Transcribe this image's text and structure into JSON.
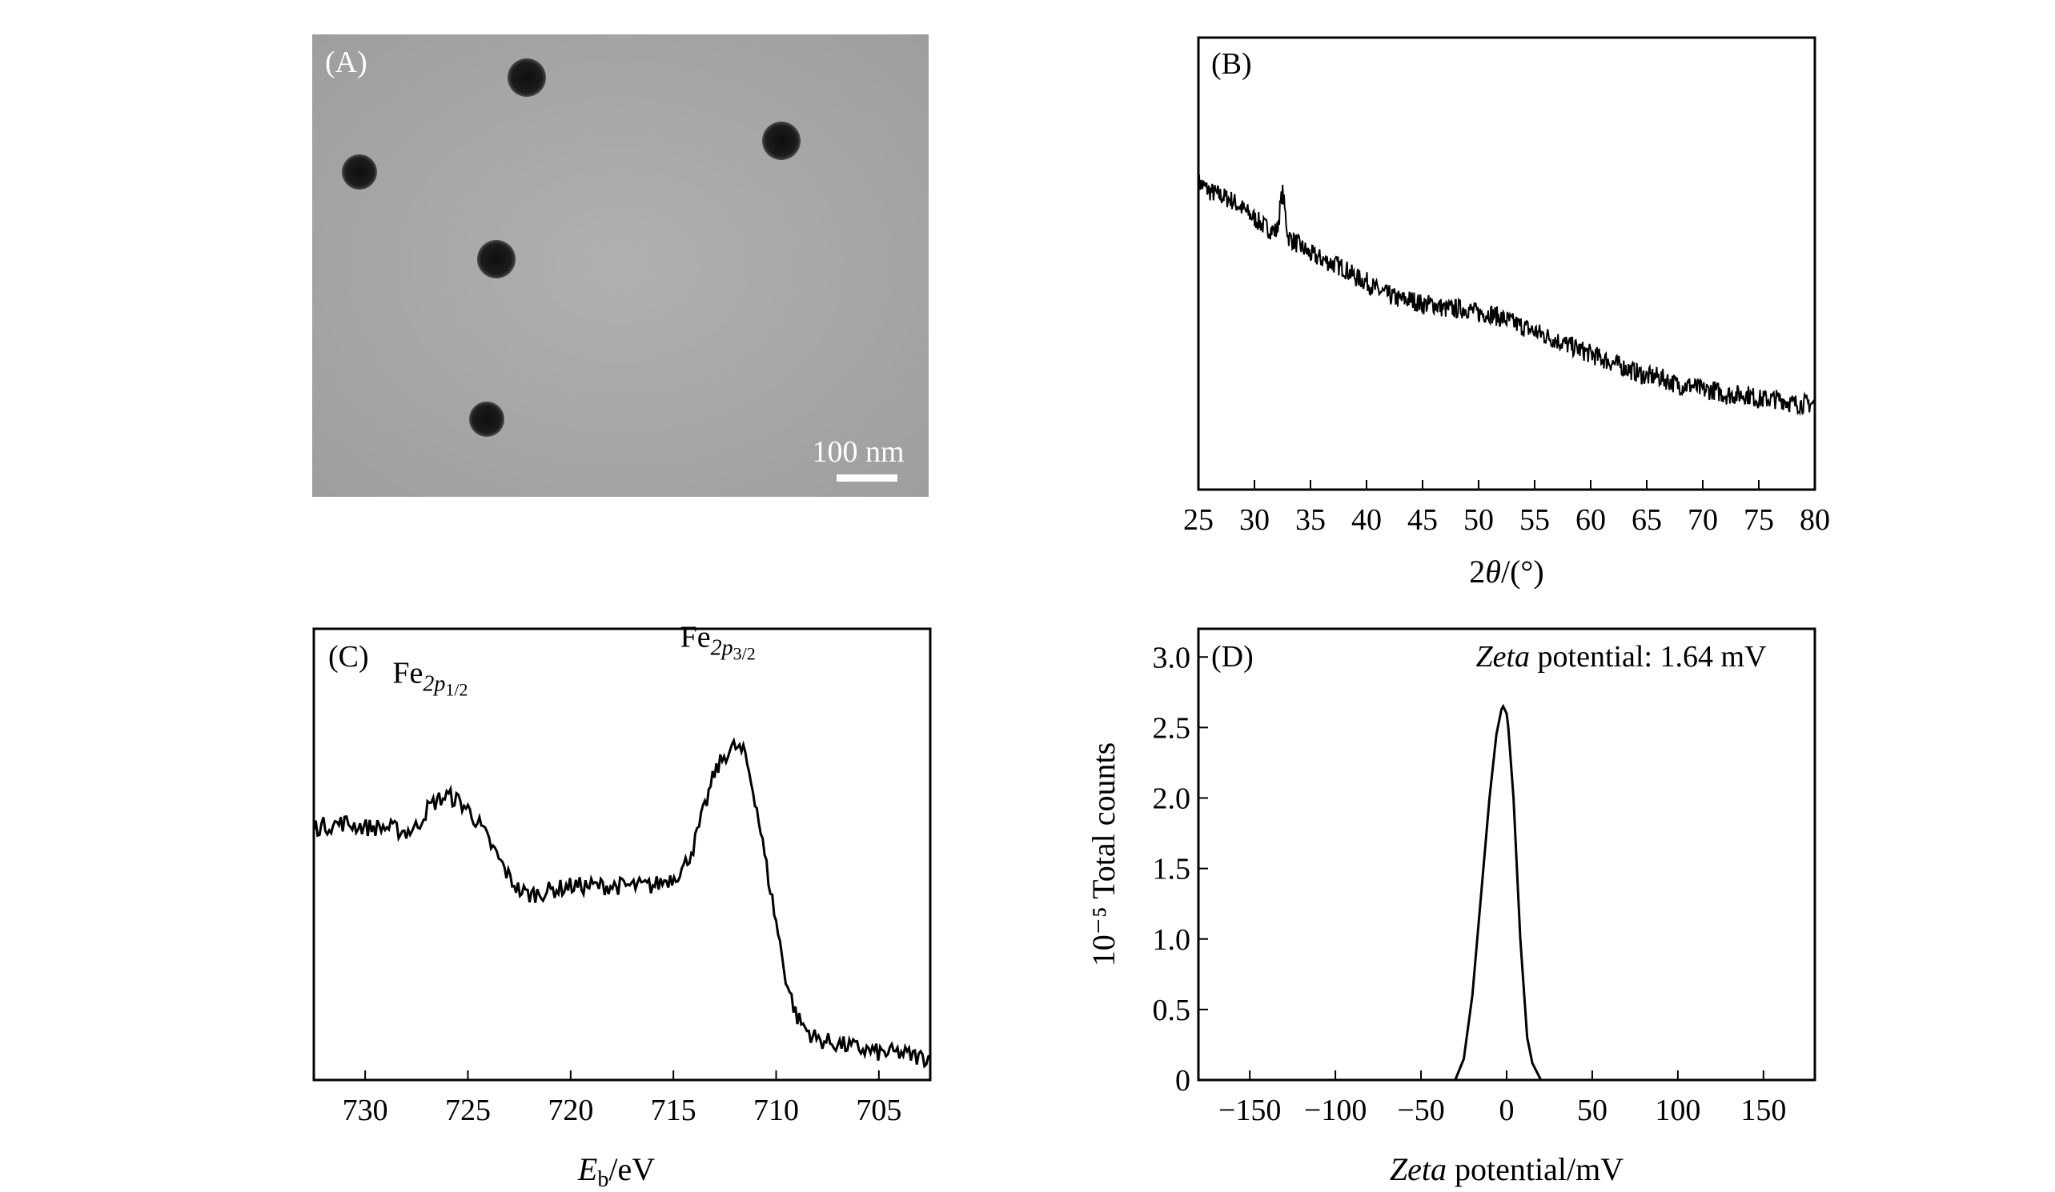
{
  "chart_data": [
    {
      "panel": "A",
      "type": "image",
      "label": "(A)",
      "scale_bar_label": "100 nm",
      "background_color": "#a6a6a6",
      "particle_color": "#151515"
    },
    {
      "panel": "B",
      "type": "line",
      "label": "(B)",
      "xlabel_prefix": "2",
      "xlabel_symbol": "θ",
      "xlabel_suffix": "/(°)",
      "xlim": [
        25,
        80
      ],
      "ylim": [
        0,
        100
      ],
      "xticks": [
        25,
        30,
        35,
        40,
        45,
        50,
        55,
        60,
        65,
        70,
        75,
        80
      ],
      "show_yticks": false,
      "noisy": true,
      "noise_amplitude": 2.2,
      "x": [
        25,
        26,
        27,
        28,
        29,
        30,
        31,
        32,
        32.5,
        33,
        34,
        35,
        36,
        37,
        38,
        39,
        40,
        41,
        42,
        43,
        44,
        45,
        46,
        47,
        48,
        49,
        50,
        51,
        52,
        53,
        54,
        55,
        56,
        57,
        58,
        59,
        60,
        61,
        62,
        63,
        64,
        65,
        66,
        67,
        68,
        69,
        70,
        71,
        72,
        73,
        74,
        75,
        76,
        77,
        78,
        79,
        80
      ],
      "y": [
        68,
        66,
        65,
        64,
        62,
        60,
        58,
        57,
        66,
        56,
        54,
        52,
        51,
        50,
        49,
        47,
        46,
        44,
        43,
        42,
        42,
        41,
        41,
        40,
        40,
        40,
        39,
        39,
        38,
        37,
        36,
        35,
        34,
        33,
        32,
        31,
        30,
        29,
        28,
        27,
        26,
        25,
        25,
        24,
        23,
        23,
        22,
        22,
        21,
        21,
        21,
        20,
        20,
        20,
        19,
        19,
        19
      ]
    },
    {
      "panel": "C",
      "type": "line",
      "label": "(C)",
      "xlabel_main": "E",
      "xlabel_sub": "b",
      "xlabel_unit": "/eV",
      "xlim": [
        732.5,
        702.5
      ],
      "ylim": [
        0,
        100
      ],
      "xticks": [
        730,
        725,
        720,
        715,
        710,
        705
      ],
      "show_yticks": false,
      "noisy": true,
      "noise_amplitude": 2.0,
      "annotations": [
        {
          "main": "Fe",
          "sub": "2p",
          "subsub": "1/2",
          "x": 727.5,
          "y": 88
        },
        {
          "main": "Fe",
          "sub": "2p",
          "subsub": "3/2",
          "x": 713.5,
          "y": 96
        }
      ],
      "x": [
        732.5,
        731,
        730,
        729,
        728,
        727.5,
        727,
        726.5,
        726,
        725.5,
        725,
        724.5,
        724,
        723.5,
        723,
        722.5,
        722,
        721,
        720,
        719,
        718,
        717,
        716,
        715,
        714.5,
        714,
        713.5,
        713,
        712.5,
        712,
        711.5,
        711,
        710.5,
        710,
        709.5,
        709,
        708.5,
        708,
        707,
        706,
        705,
        704,
        703,
        702.5
      ],
      "y": [
        56,
        57,
        56,
        56,
        55,
        56,
        60,
        62,
        63,
        62,
        60,
        57,
        53,
        49,
        45,
        42,
        41,
        42,
        43,
        43,
        43,
        43,
        43,
        45,
        47,
        52,
        60,
        68,
        72,
        74,
        72,
        62,
        48,
        35,
        22,
        14,
        11,
        9,
        8,
        7,
        6,
        6,
        5,
        5
      ]
    },
    {
      "panel": "D",
      "type": "line",
      "label": "(D)",
      "title_italic": "Zeta",
      "title_rest": " potential: 1.64 mV",
      "xlabel_italic": "Zeta",
      "xlabel_rest": " potential/mV",
      "ylabel": "10⁻⁵ Total counts",
      "xlim": [
        -180,
        180
      ],
      "ylim": [
        0,
        3.2
      ],
      "xticks": [
        -150,
        -100,
        -50,
        0,
        50,
        100,
        150
      ],
      "xtick_labels": [
        "−150",
        "−100",
        "−50",
        "0",
        "50",
        "100",
        "150"
      ],
      "yticks": [
        0,
        0.5,
        1.0,
        1.5,
        2.0,
        2.5,
        3.0
      ],
      "ytick_labels": [
        "0",
        "0.5",
        "1.0",
        "1.5",
        "2.0",
        "2.5",
        "3.0"
      ],
      "noisy": false,
      "x": [
        -30,
        -25,
        -20,
        -15,
        -10,
        -6,
        -3,
        -2,
        0,
        1,
        4,
        8,
        12,
        15,
        20
      ],
      "y": [
        0,
        0.15,
        0.6,
        1.3,
        2.0,
        2.45,
        2.63,
        2.65,
        2.6,
        2.5,
        2.0,
        1.0,
        0.3,
        0.12,
        0
      ]
    }
  ]
}
